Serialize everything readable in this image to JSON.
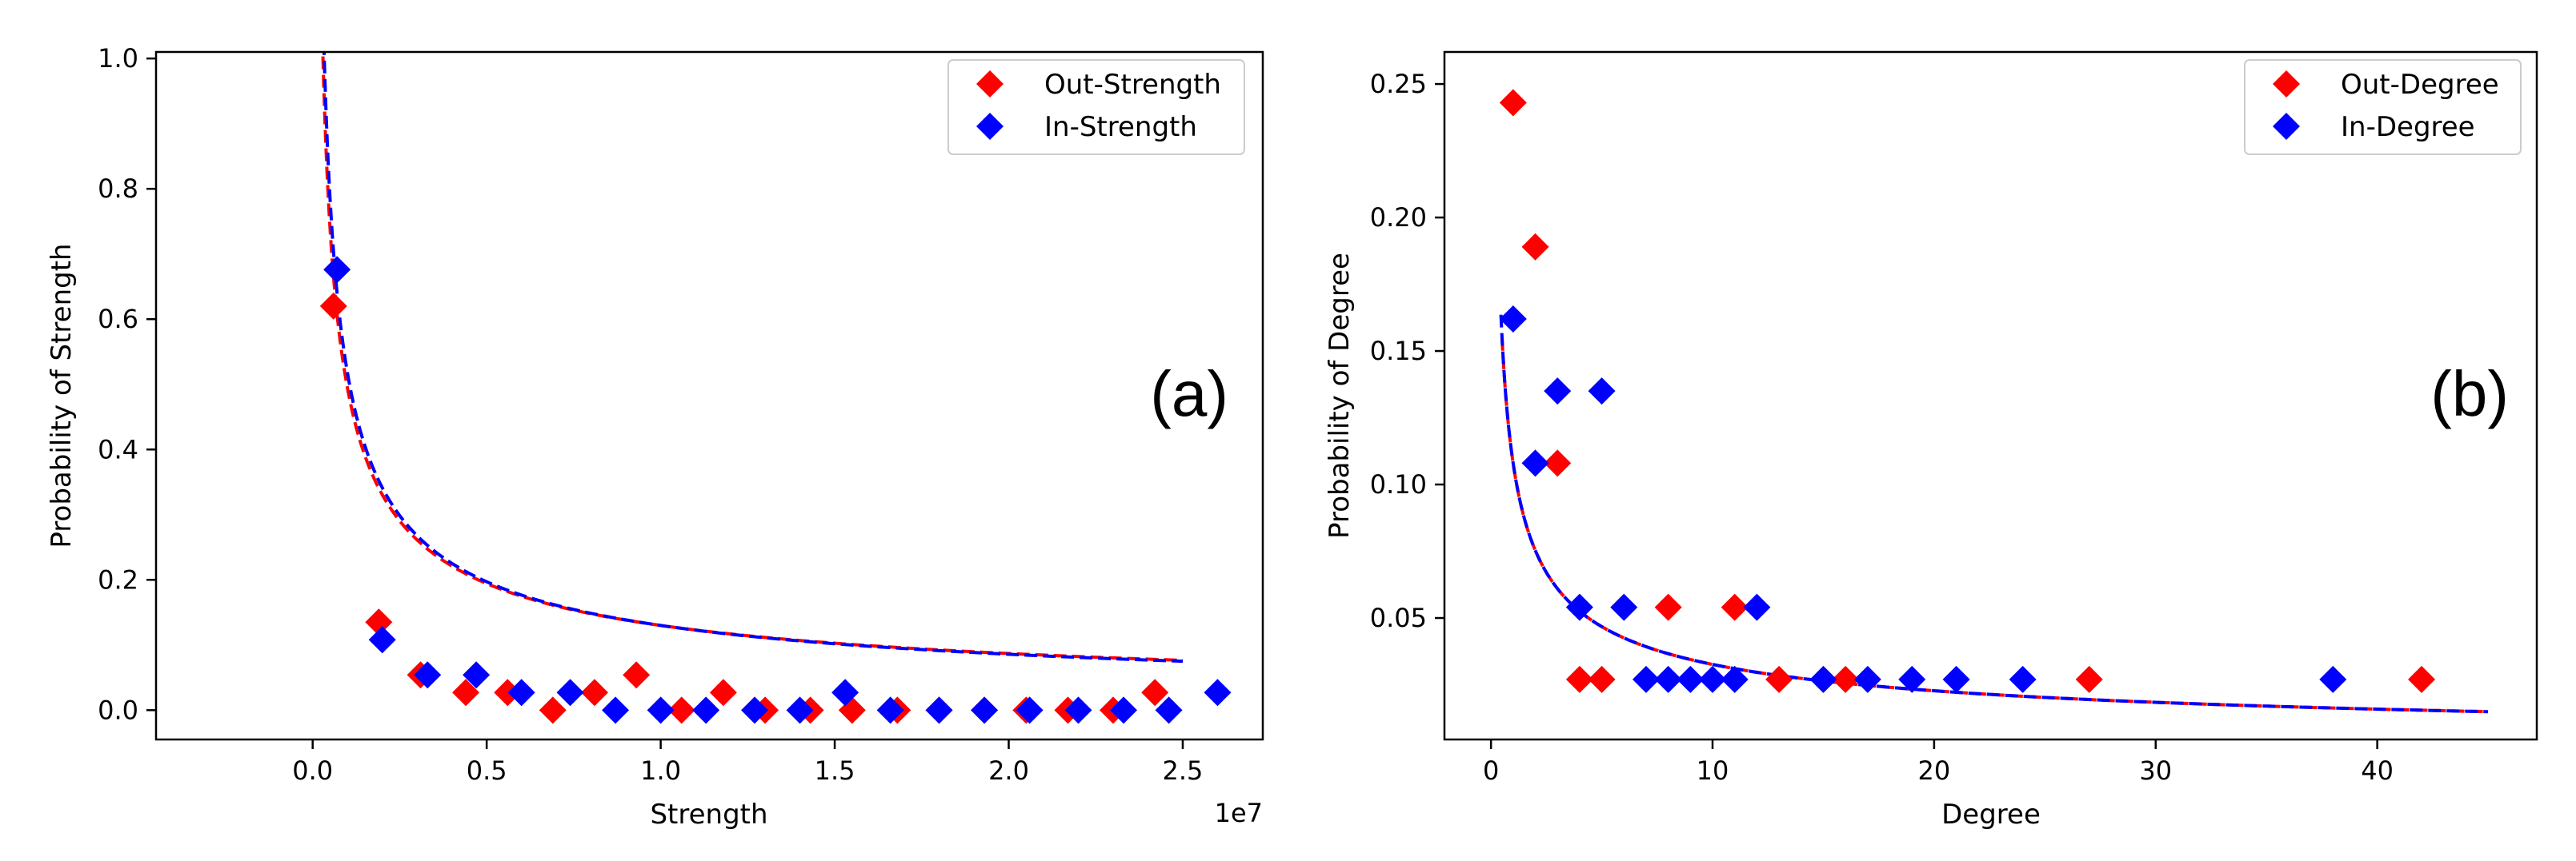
{
  "colors": {
    "red": "#ff0000",
    "blue": "#0000ff"
  },
  "chart_data": [
    {
      "type": "scatter",
      "panel_label": "(a)",
      "xlabel": "Strength",
      "ylabel": "Probability of Strength",
      "x_offset_label": "1e7",
      "xlim": [
        -0.45,
        2.73
      ],
      "ylim": [
        -0.045,
        1.01
      ],
      "xticks": [
        0,
        0.5,
        1,
        1.5,
        2,
        2.5
      ],
      "xtick_labels": [
        "0.0",
        "0.5",
        "1.0",
        "1.5",
        "2.0",
        "2.5"
      ],
      "yticks": [
        0,
        0.2,
        0.4,
        0.6,
        0.8,
        1.0
      ],
      "ytick_labels": [
        "0.0",
        "0.2",
        "0.4",
        "0.6",
        "0.8",
        "1.0"
      ],
      "legend": [
        "Out-Strength",
        "In-Strength"
      ],
      "series": [
        {
          "name": "Out-Strength",
          "color": "#ff0000",
          "x": [
            0.06,
            0.19,
            0.31,
            0.44,
            0.56,
            0.69,
            0.81,
            0.93,
            1.06,
            1.18,
            1.3,
            1.43,
            1.55,
            1.68,
            1.8,
            1.93,
            2.05,
            2.17,
            2.3,
            2.42
          ],
          "y": [
            0.62,
            0.135,
            0.054,
            0.027,
            0.027,
            0.0,
            0.027,
            0.054,
            0.0,
            0.027,
            0.0,
            0.0,
            0.0,
            0.0,
            0.0,
            0.0,
            0.0,
            0.0,
            0.0,
            0.027
          ]
        },
        {
          "name": "In-Strength",
          "color": "#0000ff",
          "x": [
            0.07,
            0.2,
            0.33,
            0.47,
            0.6,
            0.74,
            0.87,
            1.0,
            1.13,
            1.27,
            1.4,
            1.53,
            1.66,
            1.8,
            1.93,
            2.06,
            2.2,
            2.33,
            2.46,
            2.6
          ],
          "y": [
            0.676,
            0.108,
            0.054,
            0.054,
            0.027,
            0.027,
            0.0,
            0.0,
            0.0,
            0.0,
            0.0,
            0.027,
            0.0,
            0.0,
            0.0,
            0.0,
            0.0,
            0.0,
            0.0,
            0.027
          ]
        }
      ],
      "fit_curves": [
        {
          "name": "Out-Strength fit",
          "color": "#ff0000",
          "x_start": 0.02,
          "x_end": 2.5,
          "k": 0.13,
          "b": 0.58
        },
        {
          "name": "In-Strength fit",
          "color": "#0000ff",
          "x_start": 0.018,
          "x_end": 2.5,
          "k": 0.13,
          "b": 0.6
        }
      ]
    },
    {
      "type": "scatter",
      "panel_label": "(b)",
      "xlabel": "Degree",
      "ylabel": "Probability of Degree",
      "xlim": [
        -2.1,
        47.2
      ],
      "ylim": [
        0.0045,
        0.262
      ],
      "xticks": [
        0,
        10,
        20,
        30,
        40
      ],
      "xtick_labels": [
        "0",
        "10",
        "20",
        "30",
        "40"
      ],
      "yticks": [
        0.05,
        0.1,
        0.15,
        0.2,
        0.25
      ],
      "ytick_labels": [
        "0.05",
        "0.10",
        "0.15",
        "0.20",
        "0.25"
      ],
      "legend": [
        "Out-Degree",
        "In-Degree"
      ],
      "series": [
        {
          "name": "Out-Degree",
          "color": "#ff0000",
          "x": [
            1,
            2,
            3,
            4,
            5,
            8,
            11,
            13,
            16,
            27,
            42
          ],
          "y": [
            0.243,
            0.189,
            0.108,
            0.027,
            0.027,
            0.054,
            0.054,
            0.027,
            0.027,
            0.027,
            0.027
          ]
        },
        {
          "name": "In-Degree",
          "color": "#0000ff",
          "x": [
            1,
            2,
            3,
            4,
            5,
            6,
            7,
            8,
            9,
            10,
            11,
            12,
            15,
            17,
            19,
            21,
            24,
            38
          ],
          "y": [
            0.162,
            0.108,
            0.135,
            0.054,
            0.135,
            0.054,
            0.027,
            0.027,
            0.027,
            0.027,
            0.027,
            0.054,
            0.027,
            0.027,
            0.027,
            0.027,
            0.027,
            0.027
          ]
        }
      ],
      "fit_curves": [
        {
          "name": "Out-Degree fit",
          "color": "#ff0000",
          "x_start": 0.5,
          "x_end": 45,
          "k": 0.108,
          "b": 0.52
        },
        {
          "name": "In-Degree fit",
          "color": "#0000ff",
          "x_start": 0.45,
          "x_end": 45,
          "k": 0.108,
          "b": 0.52
        }
      ]
    }
  ]
}
